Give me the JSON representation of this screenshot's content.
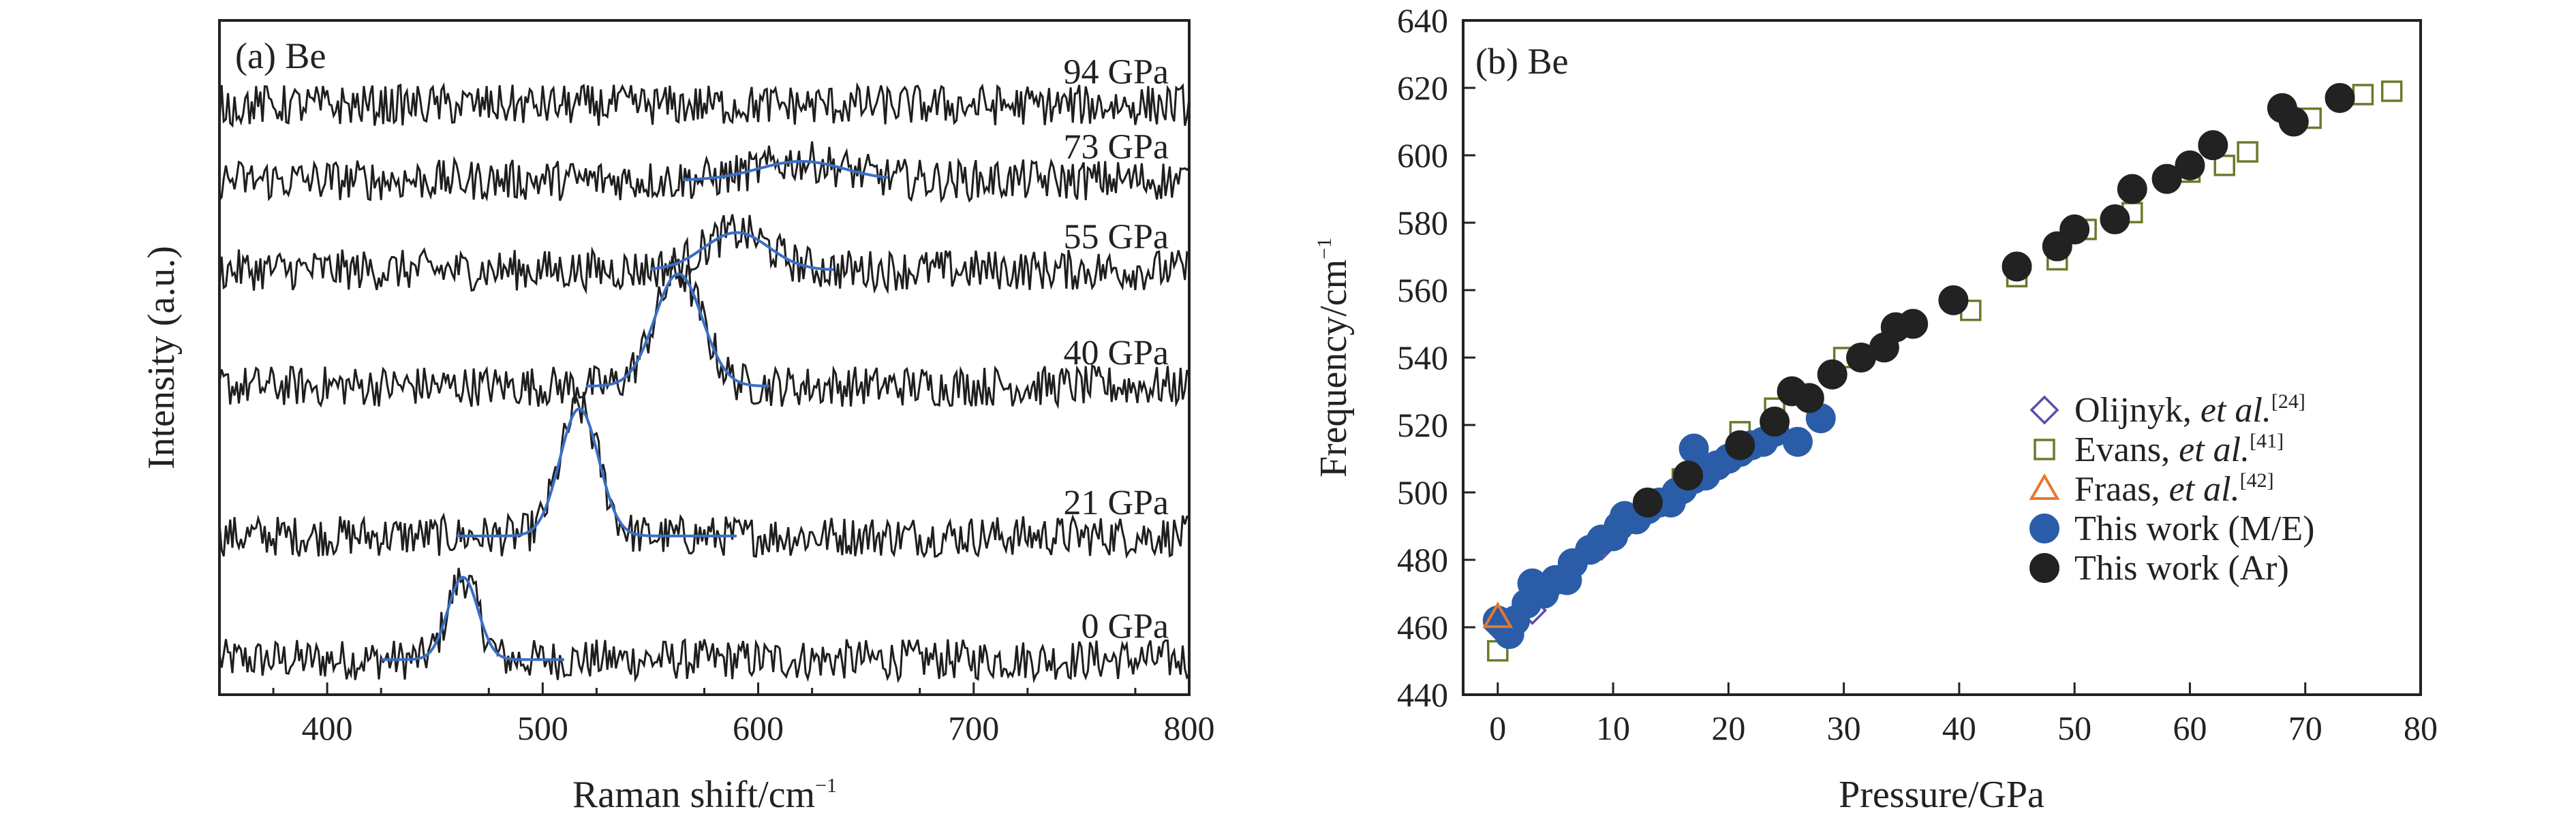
{
  "chart_data": [
    {
      "type": "line",
      "panel_label": "(a) Be",
      "xlabel": "Raman shift/cm",
      "xlabel_sup": "−1",
      "ylabel": "Intensity (a.u.)",
      "xlim": [
        350,
        800
      ],
      "xticks": [
        400,
        500,
        600,
        700,
        800
      ],
      "yticks_shown": false,
      "series": [
        {
          "name": "0 GPa",
          "label": "0 GPa",
          "peak": 463,
          "width": 7,
          "amplitude": 1.1,
          "baseline": 0.45,
          "fit_range": [
            425,
            510
          ]
        },
        {
          "name": "21 GPa",
          "label": "21 GPa",
          "peak": 517,
          "width": 9,
          "amplitude": 1.7,
          "baseline": 2.1,
          "fit_range": [
            460,
            590
          ]
        },
        {
          "name": "40 GPa",
          "label": "40 GPa",
          "peak": 563,
          "width": 11,
          "amplitude": 1.5,
          "baseline": 4.1,
          "fit_range": [
            520,
            605
          ]
        },
        {
          "name": "55 GPa",
          "label": "55 GPa",
          "peak": 590,
          "width": 15,
          "amplitude": 0.5,
          "baseline": 5.65,
          "fit_range": [
            550,
            635
          ]
        },
        {
          "name": "73 GPa",
          "label": "73 GPa",
          "peak": 620,
          "width": 20,
          "amplitude": 0.25,
          "baseline": 6.85,
          "fit_range": [
            565,
            660
          ]
        },
        {
          "name": "94 GPa",
          "label": "94 GPa",
          "peak": null,
          "width": null,
          "amplitude": 0,
          "baseline": 7.85,
          "fit_range": null
        }
      ]
    },
    {
      "type": "scatter",
      "panel_label": "(b) Be",
      "xlabel": "Pressure/GPa",
      "ylabel": "Frequency/cm",
      "ylabel_sup": "−1",
      "xlim": [
        -3,
        80
      ],
      "ylim": [
        440,
        640
      ],
      "xticks": [
        0,
        10,
        20,
        30,
        40,
        50,
        60,
        70,
        80
      ],
      "yticks": [
        440,
        460,
        480,
        500,
        520,
        540,
        560,
        580,
        600,
        620,
        640
      ],
      "legend_position": "bottom-right",
      "series": [
        {
          "name": "Olijnyk",
          "legend": "Olijnyk, ",
          "legend_italic": "et al.",
          "legend_sup": "[24]",
          "marker": "diamond-open",
          "color": "#5b4fa8",
          "x": [
            0,
            3,
            9
          ],
          "y": [
            460,
            465,
            484
          ]
        },
        {
          "name": "Evans",
          "legend": "Evans, ",
          "legend_italic": "et al.",
          "legend_sup": "[41]",
          "marker": "square-open",
          "color": "#6b7a2a",
          "x": [
            0,
            16,
            21,
            24,
            30,
            41,
            45,
            48.5,
            51,
            55,
            60,
            63,
            65,
            70.5,
            75,
            77.5
          ],
          "y": [
            453,
            504,
            518,
            525,
            540,
            554,
            564,
            569,
            578,
            583,
            595,
            597,
            601,
            611,
            618,
            619
          ]
        },
        {
          "name": "Fraas",
          "legend": "Fraas, ",
          "legend_italic": "et al.",
          "legend_sup": "[42]",
          "marker": "triangle-open",
          "color": "#e8782a",
          "x": [
            0
          ],
          "y": [
            463
          ]
        },
        {
          "name": "This work (M/E)",
          "legend": "This work (M/E)",
          "marker": "circle",
          "color": "#2a5ca8",
          "x": [
            0,
            1,
            1.5,
            2.5,
            3,
            4,
            5,
            6,
            6.5,
            8,
            9,
            10,
            10.5,
            11,
            12,
            13,
            14,
            15,
            15.5,
            16,
            17,
            17,
            18,
            19,
            20,
            21,
            22,
            23,
            24,
            26,
            28,
            29
          ],
          "y": [
            462,
            458,
            462,
            467,
            473,
            470,
            474,
            474,
            479,
            483,
            486,
            487,
            490,
            493,
            492,
            495,
            497,
            497,
            500,
            501,
            504,
            513,
            505,
            508,
            510,
            512,
            514,
            515,
            518,
            515,
            522,
            535
          ]
        },
        {
          "name": "This work (Ar)",
          "legend": "This work (Ar)",
          "marker": "circle",
          "color": "#222222",
          "x": [
            13,
            16.5,
            21,
            24,
            25.5,
            27,
            29,
            31.5,
            33.5,
            34.5,
            36,
            39.5,
            45,
            48.5,
            50,
            53.5,
            55,
            58,
            60,
            62,
            68,
            69,
            73
          ],
          "y": [
            497,
            505,
            514,
            521,
            530,
            528,
            535,
            540,
            543,
            549,
            550,
            557,
            567,
            573,
            578,
            581,
            590,
            593,
            597,
            603,
            614,
            610,
            617
          ]
        }
      ]
    }
  ]
}
